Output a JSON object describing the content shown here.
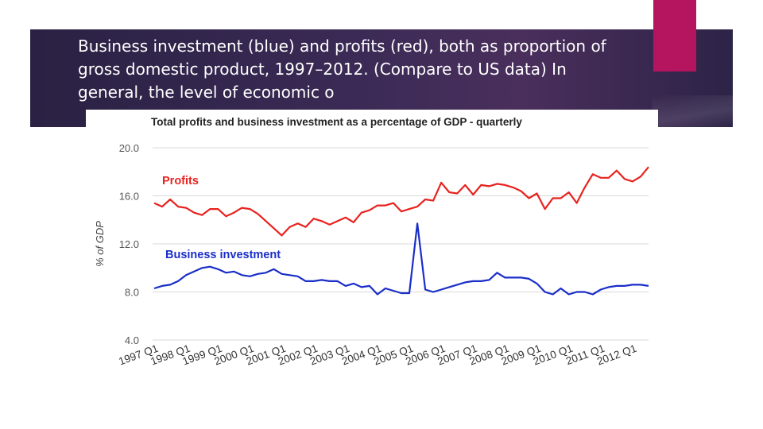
{
  "slide": {
    "caption": "Business investment (blue) and profits (red), both as proportion of gross domestic product, 1997–2012. (Compare to US data) In general, the level of economic o"
  },
  "colors": {
    "banner": "#2f2549",
    "accent": "#b5145e",
    "profits": "#e8221e",
    "investment": "#1a2ec8",
    "grid": "#d9d9d9"
  },
  "chart_data": {
    "type": "line",
    "title": "Total profits and business investment as a percentage of GDP - quarterly",
    "ylabel": "% of GDP",
    "ylim": [
      4.0,
      20.0
    ],
    "yticks": [
      "20.0",
      "16.0",
      "12.0",
      "8.0",
      "4.0"
    ],
    "xticks": [
      "1997 Q1",
      "1998 Q1",
      "1999 Q1",
      "2000 Q1",
      "2001 Q1",
      "2002 Q1",
      "2003 Q1",
      "2004 Q1",
      "2005 Q1",
      "2006 Q1",
      "2007 Q1",
      "2008 Q1",
      "2009 Q1",
      "2010 Q1",
      "2011 Q1",
      "2012 Q1"
    ],
    "grid": true,
    "x": [
      "1997 Q1",
      "1997 Q2",
      "1997 Q3",
      "1997 Q4",
      "1998 Q1",
      "1998 Q2",
      "1998 Q3",
      "1998 Q4",
      "1999 Q1",
      "1999 Q2",
      "1999 Q3",
      "1999 Q4",
      "2000 Q1",
      "2000 Q2",
      "2000 Q3",
      "2000 Q4",
      "2001 Q1",
      "2001 Q2",
      "2001 Q3",
      "2001 Q4",
      "2002 Q1",
      "2002 Q2",
      "2002 Q3",
      "2002 Q4",
      "2003 Q1",
      "2003 Q2",
      "2003 Q3",
      "2003 Q4",
      "2004 Q1",
      "2004 Q2",
      "2004 Q3",
      "2004 Q4",
      "2005 Q1",
      "2005 Q2",
      "2005 Q3",
      "2005 Q4",
      "2006 Q1",
      "2006 Q2",
      "2006 Q3",
      "2006 Q4",
      "2007 Q1",
      "2007 Q2",
      "2007 Q3",
      "2007 Q4",
      "2008 Q1",
      "2008 Q2",
      "2008 Q3",
      "2008 Q4",
      "2009 Q1",
      "2009 Q2",
      "2009 Q3",
      "2009 Q4",
      "2010 Q1",
      "2010 Q2",
      "2010 Q3",
      "2010 Q4",
      "2011 Q1",
      "2011 Q2",
      "2011 Q3",
      "2011 Q4",
      "2012 Q1",
      "2012 Q2",
      "2012 Q3"
    ],
    "series": [
      {
        "name": "Profits",
        "color": "#e8221e",
        "values": [
          15.4,
          15.1,
          15.7,
          15.1,
          15.0,
          14.6,
          14.4,
          14.9,
          14.9,
          14.3,
          14.6,
          15.0,
          14.9,
          14.5,
          13.9,
          13.3,
          12.7,
          13.4,
          13.7,
          13.4,
          14.1,
          13.9,
          13.6,
          13.9,
          14.2,
          13.8,
          14.6,
          14.8,
          15.2,
          15.2,
          15.4,
          14.7,
          14.9,
          15.1,
          15.7,
          15.6,
          17.1,
          16.3,
          16.2,
          16.9,
          16.1,
          16.9,
          16.8,
          17.0,
          16.9,
          16.7,
          16.4,
          15.8,
          16.2,
          14.9,
          15.8,
          15.8,
          16.3,
          15.4,
          16.7,
          17.8,
          17.5,
          17.5,
          18.1,
          17.4,
          17.2,
          17.6,
          18.4
        ]
      },
      {
        "name": "Business investment",
        "color": "#1a2ec8",
        "values": [
          8.3,
          8.5,
          8.6,
          8.9,
          9.4,
          9.7,
          10.0,
          10.1,
          9.9,
          9.6,
          9.7,
          9.4,
          9.3,
          9.5,
          9.6,
          9.9,
          9.5,
          9.4,
          9.3,
          8.9,
          8.9,
          9.0,
          8.9,
          8.9,
          8.5,
          8.7,
          8.4,
          8.5,
          7.8,
          8.3,
          8.1,
          7.9,
          7.9,
          13.7,
          8.2,
          8.0,
          8.2,
          8.4,
          8.6,
          8.8,
          8.9,
          8.9,
          9.0,
          9.6,
          9.2,
          9.2,
          9.2,
          9.1,
          8.7,
          8.0,
          7.8,
          8.3,
          7.8,
          8.0,
          8.0,
          7.8,
          8.2,
          8.4,
          8.5,
          8.5,
          8.6,
          8.6,
          8.5
        ]
      }
    ]
  }
}
